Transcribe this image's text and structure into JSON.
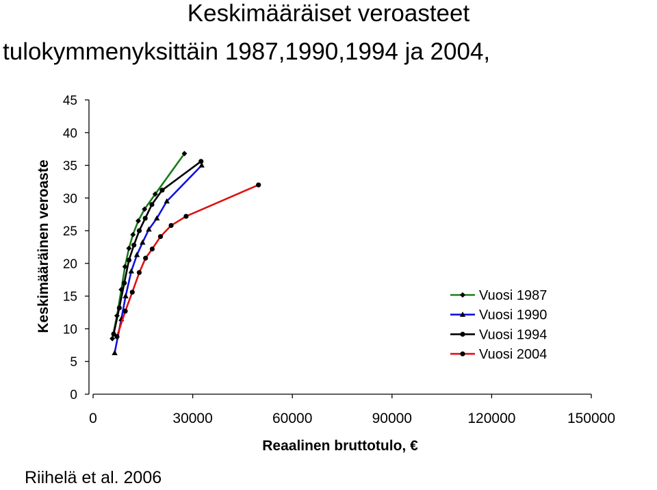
{
  "title_line1": "Keskimääräiset veroasteet",
  "title_line2": "tulokymmenyksittäin 1987,1990,1994 ja 2004,",
  "source": "Riihelä et al. 2006",
  "chart_data": {
    "type": "line",
    "xlabel": "Reaalinen bruttotulo, €",
    "ylabel": "Keskimääräinen veroaste",
    "xlim": [
      0,
      150000
    ],
    "ylim": [
      0,
      45
    ],
    "xticks": [
      0,
      30000,
      60000,
      90000,
      120000,
      150000
    ],
    "yticks": [
      0,
      5,
      10,
      15,
      20,
      25,
      30,
      35,
      40,
      45
    ],
    "grid": false,
    "legend_position": "right",
    "series": [
      {
        "name": "Vuosi 1987",
        "color": "#1a7a1a",
        "marker": "diamond",
        "points": [
          [
            5800,
            8.5
          ],
          [
            7200,
            12
          ],
          [
            8500,
            16
          ],
          [
            9600,
            19.5
          ],
          [
            10800,
            22.3
          ],
          [
            12000,
            24.4
          ],
          [
            13600,
            26.5
          ],
          [
            15500,
            28.3
          ],
          [
            18700,
            30.6
          ],
          [
            27500,
            36.8
          ]
        ]
      },
      {
        "name": "Vuosi 1990",
        "color": "#1010e0",
        "marker": "triangle",
        "points": [
          [
            6500,
            6.3
          ],
          [
            8500,
            11.5
          ],
          [
            9800,
            15
          ],
          [
            11500,
            18.8
          ],
          [
            13200,
            21.3
          ],
          [
            14900,
            23.2
          ],
          [
            16800,
            25.2
          ],
          [
            19200,
            26.9
          ],
          [
            22200,
            29.5
          ],
          [
            32700,
            35
          ]
        ]
      },
      {
        "name": "Vuosi 1994",
        "color": "#000000",
        "marker": "circle",
        "points": [
          [
            6200,
            9.2
          ],
          [
            7900,
            13.2
          ],
          [
            9400,
            17
          ],
          [
            10800,
            20.5
          ],
          [
            12300,
            22.8
          ],
          [
            13900,
            25
          ],
          [
            15700,
            26.9
          ],
          [
            17700,
            29
          ],
          [
            20800,
            31.2
          ],
          [
            32500,
            35.6
          ]
        ]
      },
      {
        "name": "Vuosi 2004",
        "color": "#e01010",
        "marker": "circle",
        "points": [
          [
            7200,
            8.8
          ],
          [
            9700,
            12.7
          ],
          [
            11800,
            15.6
          ],
          [
            13900,
            18.6
          ],
          [
            15800,
            20.8
          ],
          [
            17800,
            22.2
          ],
          [
            20300,
            24.1
          ],
          [
            23500,
            25.8
          ],
          [
            28000,
            27.2
          ],
          [
            49800,
            32
          ]
        ]
      }
    ]
  }
}
